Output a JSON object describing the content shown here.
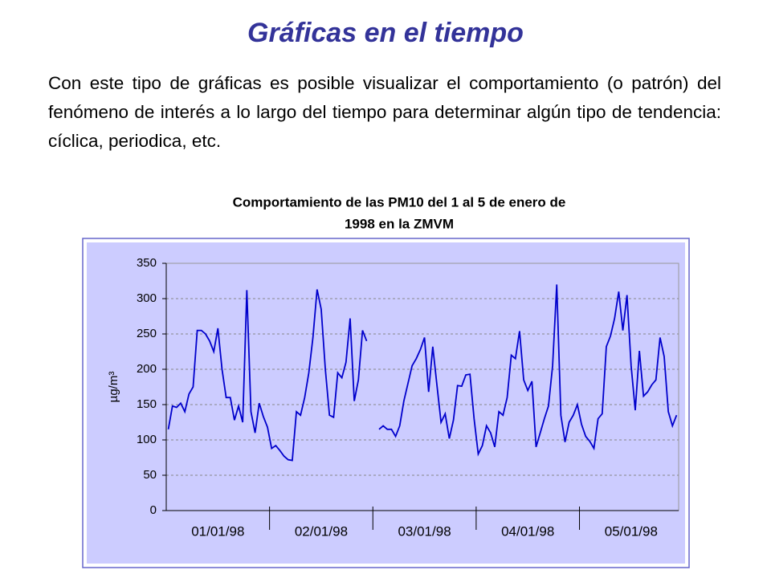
{
  "heading": "Gráficas en el tiempo",
  "paragraph": "Con este tipo de gráficas es posible visualizar el comportamiento (o patrón) del fenómeno de interés a lo largo del tiempo para determinar algún tipo de tendencia: cíclica, periodica, etc.",
  "chart_data": {
    "type": "line",
    "title": [
      "Comportamiento de las PM10 del 1 al 5 de enero de",
      "1998  en la ZMVM"
    ],
    "ylabel": "µg/m³",
    "categories": [
      null,
      null,
      null,
      null,
      null,
      null,
      null,
      null,
      null,
      null,
      null,
      null,
      "01/01/98",
      null,
      null,
      null,
      null,
      null,
      null,
      null,
      null,
      null,
      null,
      null,
      null,
      null,
      null,
      null,
      null,
      null,
      null,
      null,
      null,
      null,
      null,
      null,
      null,
      "02/01/98",
      null,
      null,
      null,
      null,
      null,
      null,
      null,
      null,
      null,
      null,
      null,
      null,
      null,
      null,
      null,
      null,
      null,
      null,
      null,
      null,
      null,
      null,
      null,
      null,
      "03/01/98",
      null,
      null,
      null,
      null,
      null,
      null,
      null,
      null,
      null,
      null,
      null,
      null,
      null,
      null,
      null,
      null,
      null,
      null,
      null,
      null,
      null,
      null,
      null,
      null,
      "04/01/98",
      null,
      null,
      null,
      null,
      null,
      null,
      null,
      null,
      null,
      null,
      null,
      null,
      null,
      null,
      null,
      null,
      null,
      null,
      null,
      null,
      null,
      null,
      null,
      null,
      "05/01/98",
      null,
      null,
      null,
      null,
      null,
      null,
      null,
      null,
      null,
      null,
      null
    ],
    "series": [
      {
        "name": "PM10",
        "color": "#0000cc",
        "values": [
          115,
          148,
          146,
          152,
          140,
          165,
          175,
          255,
          255,
          250,
          240,
          225,
          258,
          200,
          160,
          160,
          128,
          148,
          125,
          312,
          140,
          110,
          152,
          133,
          118,
          88,
          92,
          85,
          77,
          72,
          71,
          140,
          135,
          160,
          195,
          245,
          313,
          285,
          200,
          135,
          132,
          195,
          188,
          210,
          272,
          155,
          185,
          255,
          240,
          null,
          null,
          115,
          120,
          115,
          115,
          105,
          120,
          155,
          180,
          205,
          215,
          228,
          245,
          168,
          232,
          178,
          125,
          137,
          102,
          128,
          177,
          176,
          192,
          193,
          130,
          80,
          92,
          120,
          110,
          90,
          140,
          135,
          160,
          220,
          215,
          254,
          185,
          170,
          183,
          90,
          110,
          130,
          148,
          205,
          320,
          135,
          97,
          125,
          135,
          150,
          122,
          105,
          98,
          88,
          130,
          137,
          232,
          247,
          272,
          310,
          255,
          305,
          205,
          142,
          226,
          162,
          168,
          178,
          185,
          245,
          218,
          140,
          120,
          135
        ]
      }
    ],
    "ylim": [
      0,
      350
    ],
    "yticks": [
      0,
      50,
      100,
      150,
      200,
      250,
      300,
      350
    ],
    "grid": true
  }
}
